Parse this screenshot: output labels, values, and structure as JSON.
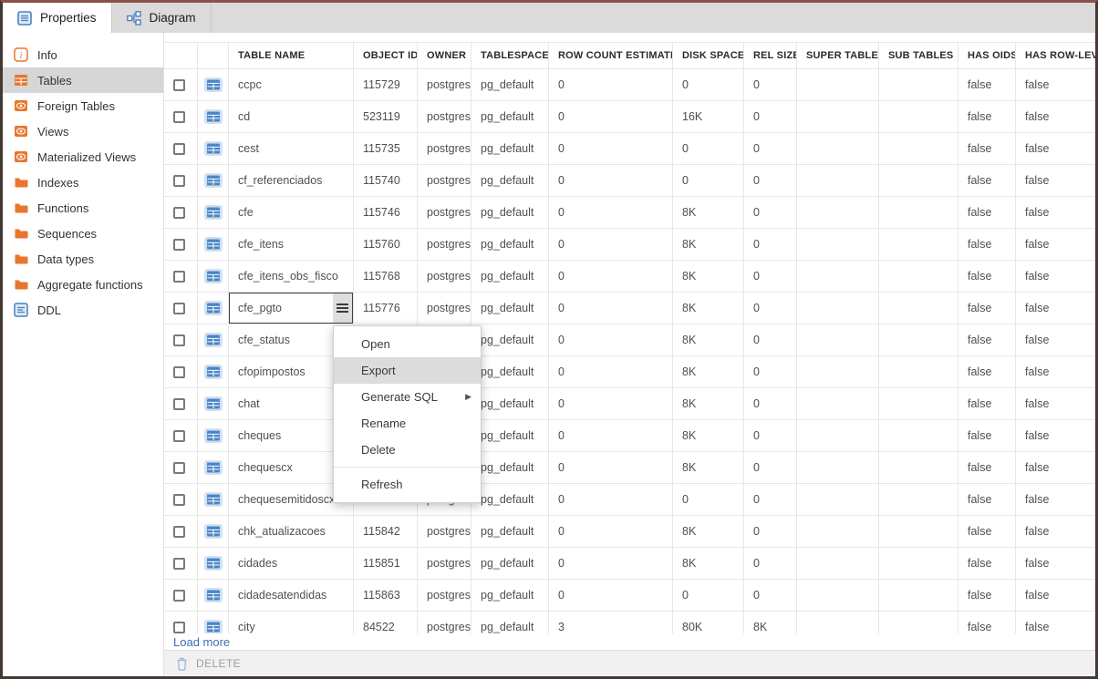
{
  "tabs": [
    {
      "label": "Properties",
      "active": true
    },
    {
      "label": "Diagram",
      "active": false
    }
  ],
  "sidebar": {
    "items": [
      {
        "label": "Info",
        "icon": "info-icon"
      },
      {
        "label": "Tables",
        "icon": "tables-icon",
        "active": true
      },
      {
        "label": "Foreign Tables",
        "icon": "foreign-tables-icon"
      },
      {
        "label": "Views",
        "icon": "views-icon"
      },
      {
        "label": "Materialized Views",
        "icon": "materialized-views-icon"
      },
      {
        "label": "Indexes",
        "icon": "folder-icon"
      },
      {
        "label": "Functions",
        "icon": "folder-icon"
      },
      {
        "label": "Sequences",
        "icon": "folder-icon"
      },
      {
        "label": "Data types",
        "icon": "folder-icon"
      },
      {
        "label": "Aggregate functions",
        "icon": "folder-icon"
      },
      {
        "label": "DDL",
        "icon": "ddl-icon"
      }
    ]
  },
  "grid": {
    "columns": [
      "TABLE NAME",
      "OBJECT ID",
      "OWNER",
      "TABLESPACE",
      "ROW COUNT ESTIMATE",
      "DISK SPACE",
      "REL SIZE",
      "SUPER TABLES",
      "SUB TABLES",
      "HAS OIDS",
      "HAS ROW-LEVEL"
    ],
    "selected_row_index": 7,
    "rows": [
      {
        "table_name": "ccpc",
        "object_id": "115729",
        "owner": "postgres",
        "tablespace": "pg_default",
        "row_count": "0",
        "disk_space": "0",
        "rel_size": "0",
        "super_tables": "",
        "sub_tables": "",
        "has_oids": "false",
        "has_row_level": "false"
      },
      {
        "table_name": "cd",
        "object_id": "523119",
        "owner": "postgres",
        "tablespace": "pg_default",
        "row_count": "0",
        "disk_space": "16K",
        "rel_size": "0",
        "super_tables": "",
        "sub_tables": "",
        "has_oids": "false",
        "has_row_level": "false"
      },
      {
        "table_name": "cest",
        "object_id": "115735",
        "owner": "postgres",
        "tablespace": "pg_default",
        "row_count": "0",
        "disk_space": "0",
        "rel_size": "0",
        "super_tables": "",
        "sub_tables": "",
        "has_oids": "false",
        "has_row_level": "false"
      },
      {
        "table_name": "cf_referenciados",
        "object_id": "115740",
        "owner": "postgres",
        "tablespace": "pg_default",
        "row_count": "0",
        "disk_space": "0",
        "rel_size": "0",
        "super_tables": "",
        "sub_tables": "",
        "has_oids": "false",
        "has_row_level": "false"
      },
      {
        "table_name": "cfe",
        "object_id": "115746",
        "owner": "postgres",
        "tablespace": "pg_default",
        "row_count": "0",
        "disk_space": "8K",
        "rel_size": "0",
        "super_tables": "",
        "sub_tables": "",
        "has_oids": "false",
        "has_row_level": "false"
      },
      {
        "table_name": "cfe_itens",
        "object_id": "115760",
        "owner": "postgres",
        "tablespace": "pg_default",
        "row_count": "0",
        "disk_space": "8K",
        "rel_size": "0",
        "super_tables": "",
        "sub_tables": "",
        "has_oids": "false",
        "has_row_level": "false"
      },
      {
        "table_name": "cfe_itens_obs_fisco",
        "object_id": "115768",
        "owner": "postgres",
        "tablespace": "pg_default",
        "row_count": "0",
        "disk_space": "8K",
        "rel_size": "0",
        "super_tables": "",
        "sub_tables": "",
        "has_oids": "false",
        "has_row_level": "false"
      },
      {
        "table_name": "cfe_pgto",
        "object_id": "115776",
        "owner": "postgres",
        "tablespace": "pg_default",
        "row_count": "0",
        "disk_space": "8K",
        "rel_size": "0",
        "super_tables": "",
        "sub_tables": "",
        "has_oids": "false",
        "has_row_level": "false"
      },
      {
        "table_name": "cfe_status",
        "object_id": "",
        "owner": "",
        "tablespace": "pg_default",
        "row_count": "0",
        "disk_space": "8K",
        "rel_size": "0",
        "super_tables": "",
        "sub_tables": "",
        "has_oids": "false",
        "has_row_level": "false"
      },
      {
        "table_name": "cfopimpostos",
        "object_id": "",
        "owner": "",
        "tablespace": "pg_default",
        "row_count": "0",
        "disk_space": "8K",
        "rel_size": "0",
        "super_tables": "",
        "sub_tables": "",
        "has_oids": "false",
        "has_row_level": "false"
      },
      {
        "table_name": "chat",
        "object_id": "",
        "owner": "",
        "tablespace": "pg_default",
        "row_count": "0",
        "disk_space": "8K",
        "rel_size": "0",
        "super_tables": "",
        "sub_tables": "",
        "has_oids": "false",
        "has_row_level": "false"
      },
      {
        "table_name": "cheques",
        "object_id": "",
        "owner": "",
        "tablespace": "pg_default",
        "row_count": "0",
        "disk_space": "8K",
        "rel_size": "0",
        "super_tables": "",
        "sub_tables": "",
        "has_oids": "false",
        "has_row_level": "false"
      },
      {
        "table_name": "chequescx",
        "object_id": "",
        "owner": "",
        "tablespace": "pg_default",
        "row_count": "0",
        "disk_space": "8K",
        "rel_size": "0",
        "super_tables": "",
        "sub_tables": "",
        "has_oids": "false",
        "has_row_level": "false"
      },
      {
        "table_name": "chequesemitidoscx",
        "object_id": "115838",
        "owner": "postgres",
        "tablespace": "pg_default",
        "row_count": "0",
        "disk_space": "0",
        "rel_size": "0",
        "super_tables": "",
        "sub_tables": "",
        "has_oids": "false",
        "has_row_level": "false"
      },
      {
        "table_name": "chk_atualizacoes",
        "object_id": "115842",
        "owner": "postgres",
        "tablespace": "pg_default",
        "row_count": "0",
        "disk_space": "8K",
        "rel_size": "0",
        "super_tables": "",
        "sub_tables": "",
        "has_oids": "false",
        "has_row_level": "false"
      },
      {
        "table_name": "cidades",
        "object_id": "115851",
        "owner": "postgres",
        "tablespace": "pg_default",
        "row_count": "0",
        "disk_space": "8K",
        "rel_size": "0",
        "super_tables": "",
        "sub_tables": "",
        "has_oids": "false",
        "has_row_level": "false"
      },
      {
        "table_name": "cidadesatendidas",
        "object_id": "115863",
        "owner": "postgres",
        "tablespace": "pg_default",
        "row_count": "0",
        "disk_space": "0",
        "rel_size": "0",
        "super_tables": "",
        "sub_tables": "",
        "has_oids": "false",
        "has_row_level": "false"
      },
      {
        "table_name": "city",
        "object_id": "84522",
        "owner": "postgres",
        "tablespace": "pg_default",
        "row_count": "3",
        "disk_space": "80K",
        "rel_size": "8K",
        "super_tables": "",
        "sub_tables": "",
        "has_oids": "false",
        "has_row_level": "false"
      }
    ],
    "load_more_label": "Load more"
  },
  "context_menu": {
    "items": [
      {
        "label": "Open"
      },
      {
        "label": "Export",
        "highlighted": true
      },
      {
        "label": "Generate SQL",
        "submenu": true
      },
      {
        "label": "Rename"
      },
      {
        "label": "Delete"
      },
      {
        "label": "Refresh",
        "separator_before": true
      }
    ]
  },
  "footer": {
    "delete_label": "DELETE"
  },
  "colors": {
    "accent_orange": "#e8762d",
    "accent_blue": "#4a80c0",
    "link_blue": "#3c6eb4"
  }
}
